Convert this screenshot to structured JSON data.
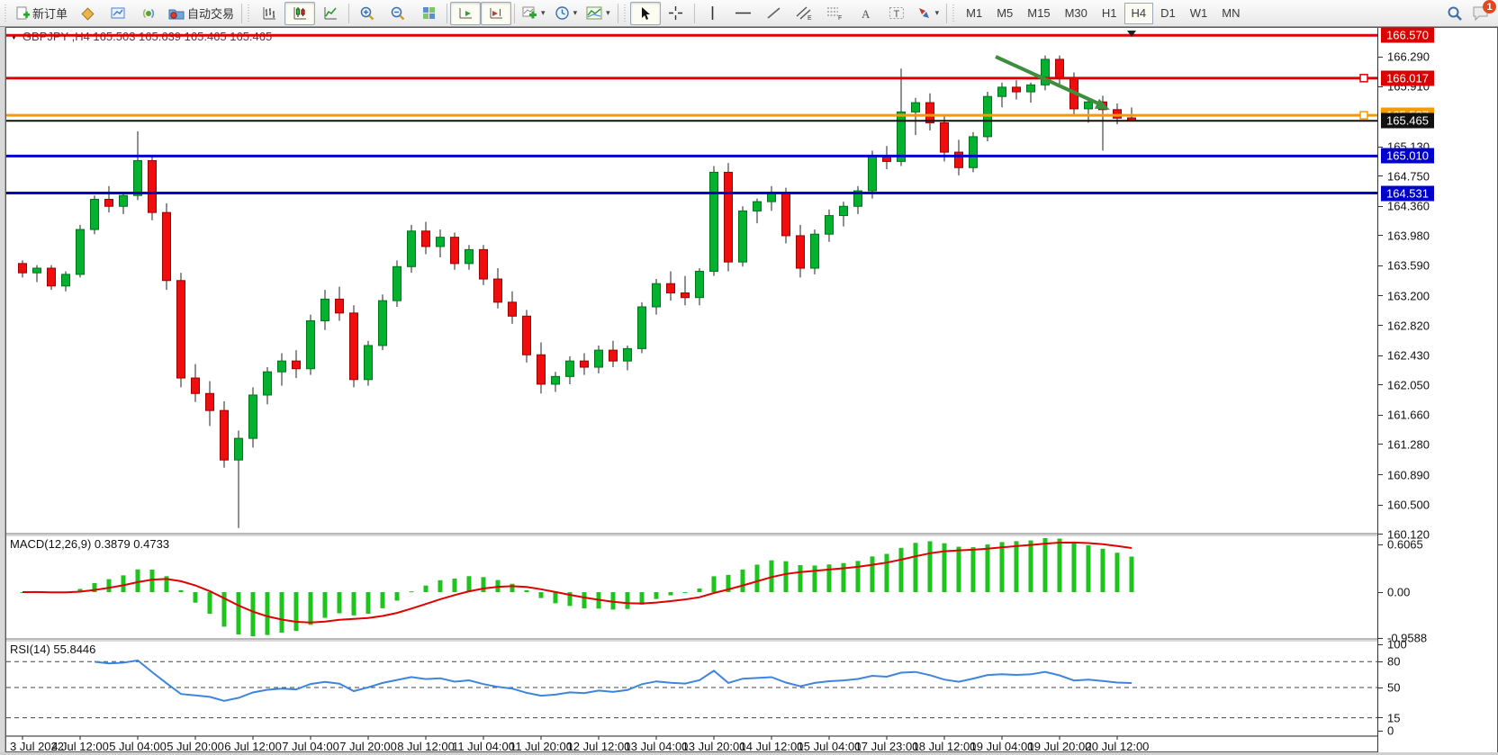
{
  "toolbar": {
    "new_order_label": "新订单",
    "auto_trading_label": "自动交易",
    "timeframes": [
      "M1",
      "M5",
      "M15",
      "M30",
      "H1",
      "H4",
      "D1",
      "W1",
      "MN"
    ],
    "active_timeframe": "H4",
    "notification_count": "1"
  },
  "chart": {
    "title": "GBPJPY ,H4  165.503 165.639 165.465 165.465",
    "macd_label": "MACD(12,26,9) 0.3879 0.4733",
    "rsi_label": "RSI(14) 55.8446"
  },
  "chart_data": {
    "type": "candlestick",
    "symbol": "GBPJPY",
    "period": "H4",
    "ohlc_current": {
      "open": 165.503,
      "high": 165.639,
      "low": 165.465,
      "close": 165.465
    },
    "colors": {
      "candle_up": "#00b22d",
      "candle_up_edge": "#00721c",
      "candle_down": "#ef0d0d",
      "candle_down_edge": "#9e0000",
      "wick": "#222222",
      "macd_histogram": "#1ec41e",
      "macd_signal": "#e00000",
      "rsi_line": "#3d85dd",
      "level_red": "#dd0000",
      "level_orange": "#f59a00",
      "level_blue": "#0000cc",
      "price_line_black": "#111111",
      "arrow_green": "#3e8e3e"
    },
    "price_axis_ticks": [
      "166.290",
      "165.910",
      "165.130",
      "164.750",
      "164.360",
      "163.980",
      "163.590",
      "163.200",
      "162.820",
      "162.430",
      "162.050",
      "161.660",
      "161.280",
      "160.890",
      "160.500",
      "160.120"
    ],
    "price_badges": [
      {
        "value": "166.570",
        "bg": "#dd0000"
      },
      {
        "value": "166.017",
        "bg": "#dd0000"
      },
      {
        "value": "165.537",
        "bg": "#f59a00"
      },
      {
        "value": "165.465",
        "bg": "#111111"
      },
      {
        "value": "165.010",
        "bg": "#0000cc"
      },
      {
        "value": "164.531",
        "bg": "#0000cc"
      }
    ],
    "levels": [
      {
        "price": 166.57,
        "color": "#dd0000",
        "width": 3,
        "handle": false
      },
      {
        "price": 166.017,
        "color": "#dd0000",
        "width": 3,
        "handle": true
      },
      {
        "price": 165.537,
        "color": "#f59a00",
        "width": 3,
        "handle": true
      },
      {
        "price": 165.465,
        "color": "#111111",
        "width": 2,
        "handle": false
      },
      {
        "price": 165.01,
        "color": "#0000cc",
        "width": 3,
        "handle": false
      },
      {
        "price": 164.531,
        "color": "#0000cc",
        "width": 3,
        "handle": false
      }
    ],
    "time_axis_labels": [
      "3 Jul 2022",
      "4 Jul 12:00",
      "5 Jul 04:00",
      "5 Jul 20:00",
      "6 Jul 12:00",
      "7 Jul 04:00",
      "7 Jul 20:00",
      "8 Jul 12:00",
      "11 Jul 04:00",
      "11 Jul 20:00",
      "12 Jul 12:00",
      "13 Jul 04:00",
      "13 Jul 20:00",
      "14 Jul 12:00",
      "15 Jul 04:00",
      "17 Jul 23:00",
      "18 Jul 12:00",
      "19 Jul 04:00",
      "19 Jul 20:00",
      "20 Jul 12:00"
    ],
    "candles": [
      [
        163.62,
        163.66,
        163.44,
        163.5
      ],
      [
        163.5,
        163.6,
        163.38,
        163.56
      ],
      [
        163.56,
        163.6,
        163.28,
        163.33
      ],
      [
        163.33,
        163.52,
        163.26,
        163.48
      ],
      [
        163.48,
        164.12,
        163.44,
        164.06
      ],
      [
        164.06,
        164.5,
        164.0,
        164.45
      ],
      [
        164.45,
        164.62,
        164.28,
        164.36
      ],
      [
        164.36,
        164.55,
        164.26,
        164.5
      ],
      [
        164.5,
        165.33,
        164.44,
        164.95
      ],
      [
        164.95,
        165.02,
        164.18,
        164.28
      ],
      [
        164.28,
        164.4,
        163.28,
        163.4
      ],
      [
        163.4,
        163.5,
        162.02,
        162.14
      ],
      [
        162.14,
        162.32,
        161.83,
        161.94
      ],
      [
        161.94,
        162.1,
        161.52,
        161.72
      ],
      [
        161.72,
        161.84,
        160.98,
        161.08
      ],
      [
        161.08,
        161.46,
        160.2,
        161.36
      ],
      [
        161.36,
        162.02,
        161.24,
        161.92
      ],
      [
        161.92,
        162.28,
        161.8,
        162.22
      ],
      [
        162.22,
        162.46,
        162.04,
        162.36
      ],
      [
        162.36,
        162.5,
        162.14,
        162.26
      ],
      [
        162.26,
        162.96,
        162.18,
        162.88
      ],
      [
        162.88,
        163.28,
        162.76,
        163.16
      ],
      [
        163.16,
        163.32,
        162.88,
        162.98
      ],
      [
        162.98,
        163.08,
        162.02,
        162.12
      ],
      [
        162.12,
        162.62,
        162.04,
        162.56
      ],
      [
        162.56,
        163.22,
        162.5,
        163.14
      ],
      [
        163.14,
        163.66,
        163.06,
        163.58
      ],
      [
        163.58,
        164.12,
        163.5,
        164.04
      ],
      [
        164.04,
        164.16,
        163.74,
        163.84
      ],
      [
        163.84,
        164.06,
        163.7,
        163.96
      ],
      [
        163.96,
        164.02,
        163.54,
        163.62
      ],
      [
        163.62,
        163.86,
        163.54,
        163.8
      ],
      [
        163.8,
        163.86,
        163.34,
        163.42
      ],
      [
        163.42,
        163.56,
        163.04,
        163.12
      ],
      [
        163.12,
        163.26,
        162.84,
        162.94
      ],
      [
        162.94,
        163.02,
        162.34,
        162.44
      ],
      [
        162.44,
        162.6,
        161.94,
        162.06
      ],
      [
        162.06,
        162.22,
        161.96,
        162.16
      ],
      [
        162.16,
        162.42,
        162.06,
        162.36
      ],
      [
        162.36,
        162.46,
        162.18,
        162.28
      ],
      [
        162.28,
        162.56,
        162.2,
        162.5
      ],
      [
        162.5,
        162.62,
        162.28,
        162.36
      ],
      [
        162.36,
        162.56,
        162.24,
        162.52
      ],
      [
        162.52,
        163.12,
        162.46,
        163.06
      ],
      [
        163.06,
        163.42,
        162.96,
        163.36
      ],
      [
        163.36,
        163.52,
        163.14,
        163.24
      ],
      [
        163.24,
        163.46,
        163.08,
        163.18
      ],
      [
        163.18,
        163.56,
        163.08,
        163.52
      ],
      [
        163.52,
        164.88,
        163.46,
        164.8
      ],
      [
        164.8,
        164.92,
        163.52,
        163.64
      ],
      [
        163.64,
        164.36,
        163.58,
        164.3
      ],
      [
        164.3,
        164.46,
        164.14,
        164.42
      ],
      [
        164.42,
        164.62,
        164.3,
        164.54
      ],
      [
        164.54,
        164.6,
        163.88,
        163.98
      ],
      [
        163.98,
        164.12,
        163.44,
        163.56
      ],
      [
        163.56,
        164.06,
        163.48,
        164.0
      ],
      [
        164.0,
        164.32,
        163.9,
        164.24
      ],
      [
        164.24,
        164.42,
        164.1,
        164.36
      ],
      [
        164.36,
        164.62,
        164.26,
        164.56
      ],
      [
        164.56,
        165.08,
        164.46,
        165.02
      ],
      [
        165.02,
        165.14,
        164.84,
        164.94
      ],
      [
        164.94,
        166.14,
        164.88,
        165.58
      ],
      [
        165.58,
        165.76,
        165.28,
        165.7
      ],
      [
        165.7,
        165.82,
        165.34,
        165.44
      ],
      [
        165.44,
        165.52,
        164.94,
        165.06
      ],
      [
        165.06,
        165.22,
        164.76,
        164.86
      ],
      [
        164.86,
        165.32,
        164.8,
        165.26
      ],
      [
        165.26,
        165.84,
        165.2,
        165.78
      ],
      [
        165.78,
        165.96,
        165.64,
        165.9
      ],
      [
        165.9,
        165.99,
        165.74,
        165.84
      ],
      [
        165.84,
        165.96,
        165.7,
        165.93
      ],
      [
        165.93,
        166.31,
        165.86,
        166.26
      ],
      [
        166.26,
        166.31,
        165.94,
        166.02
      ],
      [
        166.02,
        166.09,
        165.54,
        165.62
      ],
      [
        165.62,
        165.76,
        165.44,
        165.71
      ],
      [
        165.71,
        165.79,
        165.08,
        165.61
      ],
      [
        165.61,
        165.69,
        165.42,
        165.5
      ],
      [
        165.503,
        165.639,
        165.465,
        165.465
      ]
    ],
    "macd": {
      "label": "MACD(12,26,9) 0.3879 0.4733",
      "fast": 12,
      "slow": 26,
      "signal": 9,
      "value_main": 0.3879,
      "value_signal": 0.4733,
      "axis_labels": [
        "0.6065",
        "0.00",
        "-0.9588"
      ]
    },
    "rsi": {
      "label": "RSI(14) 55.8446",
      "period": 14,
      "value": 55.8446,
      "axis_labels": [
        "100",
        "80",
        "50",
        "15",
        "0"
      ],
      "levels": [
        80,
        50,
        15
      ]
    },
    "annotations": {
      "trend_arrow": {
        "color": "#3e8e3e",
        "direction": "down-right"
      },
      "shift_marker": "triangle-down"
    }
  }
}
